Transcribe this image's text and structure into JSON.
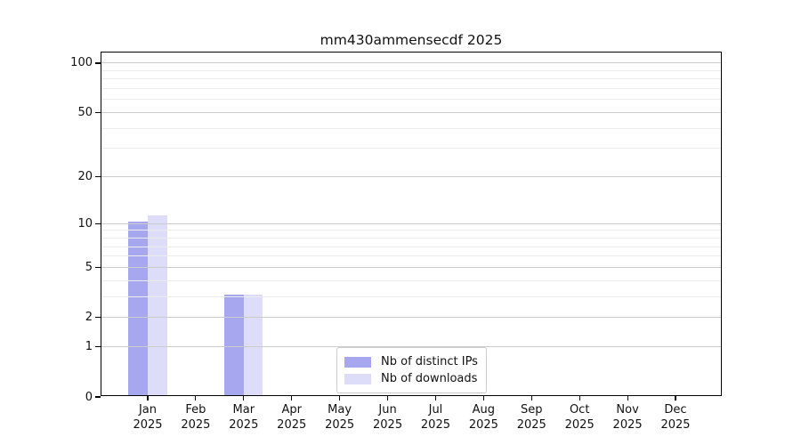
{
  "title": "mm430ammensecdf 2025",
  "chart_data": {
    "type": "bar",
    "title": "mm430ammensecdf 2025",
    "categories": [
      "Jan",
      "Feb",
      "Mar",
      "Apr",
      "May",
      "Jun",
      "Jul",
      "Aug",
      "Sep",
      "Oct",
      "Nov",
      "Dec"
    ],
    "category_year": "2025",
    "series": [
      {
        "name": "Nb of distinct IPs",
        "color": "#a7a7f0",
        "values": [
          10,
          0,
          3,
          0,
          0,
          0,
          0,
          0,
          0,
          0,
          0,
          0
        ]
      },
      {
        "name": "Nb of downloads",
        "color": "#ddddf9",
        "values": [
          11,
          0,
          3,
          0,
          0,
          0,
          0,
          0,
          0,
          0,
          0,
          0
        ]
      }
    ],
    "yscale": "log1p",
    "ylim": [
      0,
      116
    ],
    "yticks": [
      0,
      1,
      2,
      5,
      10,
      20,
      50,
      100
    ],
    "yticks_minor": [
      3,
      4,
      6,
      7,
      8,
      9,
      30,
      40,
      60,
      70,
      80,
      90
    ],
    "grid": "horizontal",
    "legend_position": "inside lower-center",
    "colors": {
      "grid_major": "#cccccc",
      "grid_minor": "#ececec",
      "axis": "#000000",
      "background": "#ffffff"
    }
  }
}
